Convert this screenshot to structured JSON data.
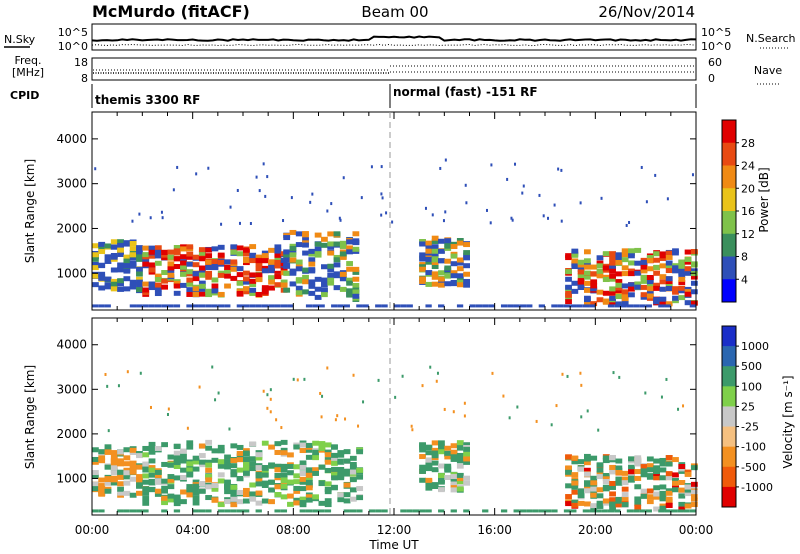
{
  "header": {
    "station": "McMurdo (fitACF)",
    "beam": "Beam 00",
    "date": "26/Nov/2014"
  },
  "panel_labels": {
    "nsky": "N.Sky",
    "nsearch": "N.Search",
    "freq_line1": "Freq.",
    "freq_line2": "[MHz]",
    "nave": "Nave",
    "cpid": "CPID"
  },
  "cpid_segments": [
    {
      "label": "themis 3300 RF",
      "start_hour": 0
    },
    {
      "label": "normal (fast) -151 RF",
      "start_hour": 12
    }
  ],
  "noise_panel": {
    "left_ticks": [
      "10^5",
      "10^0"
    ],
    "right_ticks": [
      "10^5",
      "10^0"
    ]
  },
  "freq_panel": {
    "left_ticks": [
      "18",
      "8"
    ],
    "right_ticks": [
      "60",
      "0"
    ]
  },
  "chart_data": [
    {
      "type": "heatmap",
      "name": "power",
      "title": "",
      "xlabel": "Time UT",
      "ylabel": "Slant Range [km]",
      "xlim": [
        0,
        24
      ],
      "ylim": [
        180,
        4600
      ],
      "x_ticks": [
        "00:00",
        "04:00",
        "08:00",
        "12:00",
        "16:00",
        "20:00",
        "00:00"
      ],
      "y_ticks": [
        1000,
        2000,
        3000,
        4000
      ],
      "colorbar": {
        "label": "Power [dB]",
        "ticks": [
          4,
          8,
          12,
          16,
          20,
          24,
          28
        ],
        "range": [
          0,
          32
        ],
        "colors": [
          "#0000ff",
          "#2e4fb8",
          "#3a8f5c",
          "#7fc24a",
          "#e9c31a",
          "#f08a14",
          "#e84a12",
          "#e00000"
        ]
      },
      "features": [
        {
          "t0": 0.0,
          "t1": 2.0,
          "r0": 600,
          "r1": 1700,
          "level": "low"
        },
        {
          "t0": 2.0,
          "t1": 7.6,
          "r0": 500,
          "r1": 1600,
          "level": "high"
        },
        {
          "t0": 7.6,
          "t1": 10.6,
          "r0": 400,
          "r1": 1900,
          "level": "mid"
        },
        {
          "t0": 13.0,
          "t1": 15.0,
          "r0": 700,
          "r1": 1800,
          "level": "mid"
        },
        {
          "t0": 18.8,
          "t1": 24.0,
          "r0": 300,
          "r1": 1500,
          "level": "high"
        }
      ]
    },
    {
      "type": "heatmap",
      "name": "velocity",
      "title": "",
      "xlabel": "Time UT",
      "ylabel": "Slant Range [km]",
      "xlim": [
        0,
        24
      ],
      "ylim": [
        180,
        4600
      ],
      "x_ticks": [
        "00:00",
        "04:00",
        "08:00",
        "12:00",
        "16:00",
        "20:00",
        "00:00"
      ],
      "y_ticks": [
        1000,
        2000,
        3000,
        4000
      ],
      "colorbar": {
        "label": "Velocity [m s⁻¹]",
        "ticks": [
          "1000",
          "500",
          "100",
          "25",
          "-25",
          "-100",
          "-500",
          "-1000"
        ],
        "range": [
          -1200,
          1200
        ],
        "colors": [
          "#e00000",
          "#f05a0a",
          "#f39020",
          "#f5c080",
          "#c8c8c8",
          "#7fd04a",
          "#3c9a6a",
          "#2a66b0",
          "#1a2ec8"
        ]
      },
      "features": [
        {
          "t0": 0.0,
          "t1": 2.0,
          "r0": 600,
          "r1": 1700,
          "level": "away"
        },
        {
          "t0": 2.0,
          "t1": 10.6,
          "r0": 400,
          "r1": 1800,
          "level": "toward"
        },
        {
          "t0": 13.0,
          "t1": 15.0,
          "r0": 700,
          "r1": 1800,
          "level": "toward"
        },
        {
          "t0": 18.8,
          "t1": 24.0,
          "r0": 300,
          "r1": 1500,
          "level": "mixed"
        }
      ]
    }
  ]
}
